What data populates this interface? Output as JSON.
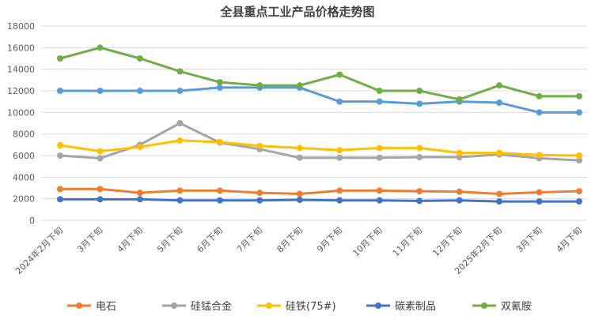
{
  "chart_data": {
    "type": "line",
    "title": "全县重点工业产品价格走势图",
    "categories": [
      "2024年2月下旬",
      "3月下旬",
      "4月下旬",
      "5月下旬",
      "6月下旬",
      "7月下旬",
      "8月下旬",
      "9月下旬",
      "10月下旬",
      "11月下旬",
      "12月下旬",
      "2025年2月下旬",
      "3月下旬",
      "4月下旬"
    ],
    "ylim": [
      0,
      18000
    ],
    "yticks": [
      0,
      2000,
      4000,
      6000,
      8000,
      10000,
      12000,
      14000,
      16000,
      18000
    ],
    "grid": true,
    "legend_position": "bottom",
    "series": [
      {
        "name": "电石",
        "color": "#ED7D31",
        "values": [
          2900,
          2900,
          2550,
          2750,
          2750,
          2550,
          2450,
          2750,
          2750,
          2700,
          2650,
          2450,
          2600,
          2700
        ]
      },
      {
        "name": "硅锰合金",
        "color": "#A5A5A5",
        "values": [
          6000,
          5750,
          7000,
          9000,
          7200,
          6600,
          5800,
          5800,
          5800,
          5850,
          5850,
          6100,
          5750,
          5550
        ]
      },
      {
        "name": "硅铁(75#)",
        "color": "#FFC000",
        "values": [
          6950,
          6400,
          6800,
          7400,
          7250,
          6900,
          6700,
          6500,
          6700,
          6700,
          6250,
          6250,
          6050,
          6000
        ]
      },
      {
        "name": "碳素制品",
        "color": "#4472C4",
        "values": [
          1950,
          1950,
          1950,
          1850,
          1850,
          1850,
          1900,
          1850,
          1850,
          1800,
          1850,
          1750,
          1750,
          1750
        ]
      },
      {
        "name": "双氰胺",
        "color": "#70AD47",
        "values": [
          15000,
          16000,
          15000,
          13800,
          12800,
          12500,
          12500,
          13500,
          12000,
          12000,
          11200,
          12500,
          11500,
          11500
        ]
      }
    ],
    "extra_lines": [
      {
        "color": "#5B9BD5",
        "values": [
          12000,
          12000,
          12000,
          12000,
          12300,
          12300,
          12300,
          11000,
          11000,
          10800,
          11000,
          10900,
          10000,
          10000
        ]
      }
    ]
  }
}
